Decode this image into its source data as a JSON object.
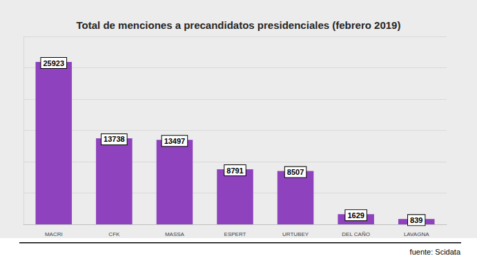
{
  "chart_data": {
    "type": "bar",
    "title": "Total de menciones a precandidatos presidenciales (febrero 2019)",
    "categories": [
      "MACRI",
      "CFK",
      "MASSA",
      "ESPERT",
      "URTUBEY",
      "DEL CAÑO",
      "LAVAGNA"
    ],
    "values": [
      25923,
      13738,
      13497,
      8791,
      8507,
      1629,
      839
    ],
    "color": "#8e42bd",
    "ylim": [
      0,
      30000
    ],
    "yticks": [
      0,
      5000,
      10000,
      15000,
      20000,
      25000,
      30000
    ],
    "grid": true,
    "data_labels": true,
    "tick_labels": "x",
    "annotations": [
      "fuente: Scidata"
    ]
  }
}
